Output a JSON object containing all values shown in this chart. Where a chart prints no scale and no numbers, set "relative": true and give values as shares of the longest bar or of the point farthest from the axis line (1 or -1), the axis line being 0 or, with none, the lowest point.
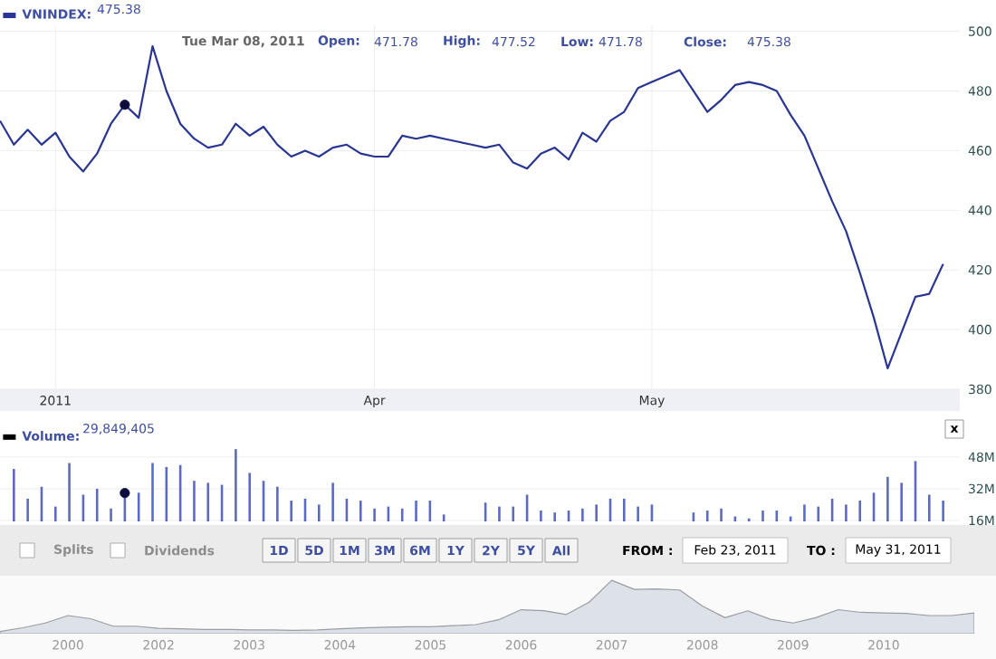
{
  "chart_data": [
    {
      "type": "line",
      "categories": [
        null,
        null,
        null,
        null,
        "2011",
        null,
        null,
        null,
        null,
        null,
        null,
        null,
        null,
        null,
        null,
        null,
        null,
        null,
        null,
        null,
        null,
        null,
        null,
        null,
        null,
        null,
        null,
        "Apr",
        null,
        null,
        null,
        null,
        null,
        null,
        null,
        null,
        null,
        null,
        null,
        null,
        null,
        null,
        null,
        null,
        null,
        null,
        null,
        "May",
        null,
        null,
        null,
        null,
        null,
        null,
        null,
        null,
        null,
        null,
        null,
        null,
        null,
        null,
        null,
        null,
        null,
        null,
        null,
        null,
        null
      ],
      "series": [
        {
          "name": "VNINDEX:",
          "color": "#283593",
          "values": [
            470,
            462,
            467,
            462,
            466,
            458,
            453,
            459,
            469,
            475.38,
            471,
            495,
            480,
            469,
            464,
            461,
            462,
            469,
            465,
            468,
            462,
            458,
            460,
            458,
            461,
            462,
            459,
            458,
            458,
            465,
            464,
            465,
            464,
            463,
            462,
            461,
            462,
            456,
            454,
            459,
            461,
            457,
            466,
            463,
            470,
            473,
            481,
            483,
            485,
            487,
            480,
            473,
            477,
            482,
            483,
            482,
            480,
            472,
            465,
            454,
            443,
            433,
            419,
            404,
            387,
            399,
            411,
            412,
            422
          ]
        },
        {
          "type": "scatter",
          "color": "#0d0d3d",
          "values": [
            null,
            null,
            null,
            null,
            null,
            null,
            null,
            null,
            null,
            475.38,
            null,
            null,
            null,
            null,
            null,
            null,
            null,
            null,
            null,
            null,
            null,
            null,
            null,
            null,
            null,
            null,
            null,
            null,
            null,
            null,
            null,
            null,
            null,
            null,
            null,
            null,
            null,
            null,
            null,
            null,
            null,
            null,
            null,
            null,
            null,
            null,
            null,
            null,
            null,
            null,
            null,
            null,
            null,
            null,
            null,
            null,
            null,
            null,
            null,
            null,
            null,
            null,
            null,
            null,
            null,
            null,
            null,
            null,
            null
          ]
        }
      ],
      "ylim": [
        380,
        502
      ],
      "yticks": [
        380,
        400,
        420,
        440,
        460,
        480,
        500
      ],
      "grid": true,
      "legend": "top left",
      "annotations": [
        "475.38",
        "Tue Mar 08, 2011",
        "Open:",
        "471.78",
        "High:",
        "477.52",
        "Low:",
        "471.78",
        "Close:",
        "475.38"
      ]
    },
    {
      "type": "bar",
      "categories": [
        null,
        null,
        null,
        null,
        null,
        null,
        null,
        null,
        null,
        null,
        null,
        null,
        null,
        null,
        null,
        null,
        null,
        null,
        null,
        null,
        null,
        null,
        null,
        null,
        null,
        null,
        null,
        null,
        null,
        null,
        null,
        null,
        null,
        null,
        null,
        null,
        null,
        null,
        null,
        null,
        null,
        null,
        null,
        null,
        null,
        null,
        null,
        null,
        null,
        null,
        null,
        null,
        null,
        null,
        null,
        null,
        null,
        null,
        null,
        null,
        null,
        null,
        null,
        null,
        null,
        null,
        null,
        null,
        null
      ],
      "series": [
        {
          "name": "Volume:",
          "color": "#5c6bc0",
          "values": [
            null,
            42,
            27,
            33,
            23,
            45,
            29,
            32,
            22,
            29.849405,
            30,
            45,
            43,
            44,
            36,
            35,
            34,
            52,
            40,
            36,
            33,
            26,
            27,
            24,
            35,
            27,
            26,
            22,
            23,
            22,
            26,
            26,
            19,
            null,
            null,
            25,
            23,
            23,
            29,
            21,
            20,
            21,
            22,
            24,
            27,
            27,
            23,
            24,
            null,
            null,
            20,
            21,
            22,
            18,
            17,
            21,
            21,
            18,
            24,
            23,
            27,
            24,
            26,
            30,
            38,
            35,
            46,
            29,
            26
          ]
        },
        {
          "type": "scatter",
          "color": "#0d0d3d",
          "values": [
            null,
            null,
            null,
            null,
            null,
            null,
            null,
            null,
            null,
            29.849405,
            null,
            null,
            null,
            null,
            null,
            null,
            null,
            null,
            null,
            null,
            null,
            null,
            null,
            null,
            null,
            null,
            null,
            null,
            null,
            null,
            null,
            null,
            null,
            null,
            null,
            null,
            null,
            null,
            null,
            null,
            null,
            null,
            null,
            null,
            null,
            null,
            null,
            null,
            null,
            null,
            null,
            null,
            null,
            null,
            null,
            null,
            null,
            null,
            null,
            null,
            null,
            null,
            null,
            null,
            null,
            null,
            null,
            null,
            null
          ]
        }
      ],
      "ylim": [
        15.5,
        53
      ],
      "yticks": [
        {
          "value": 16,
          "label": "16M"
        },
        {
          "value": 32,
          "label": "32M"
        },
        {
          "value": 48,
          "label": "48M"
        }
      ],
      "tick_labels": "y",
      "grid": "y",
      "legend": "top left",
      "annotations": [
        "29,849,405"
      ]
    },
    {
      "type": "other",
      "annotations": [
        "Splits",
        "Dividends",
        "1D",
        "5D",
        "1M",
        "3M",
        "6M",
        "1Y",
        "2Y",
        "5Y",
        "All",
        "FROM :",
        "Feb 23, 2011",
        "TO :",
        "May 31, 2011",
        "x"
      ]
    },
    {
      "type": "area",
      "relative": true,
      "color": "#dde1e8",
      "categories": [
        null,
        null,
        null,
        "2000",
        null,
        null,
        null,
        "2002",
        null,
        null,
        null,
        "2003",
        null,
        null,
        null,
        "2004",
        null,
        null,
        null,
        "2005",
        null,
        null,
        null,
        "2006",
        null,
        null,
        null,
        "2007",
        null,
        null,
        null,
        "2008",
        null,
        null,
        null,
        "2009",
        null,
        null,
        null,
        "2010",
        null,
        null,
        null,
        null
      ],
      "values": [
        0.04,
        0.11,
        0.2,
        0.34,
        0.28,
        0.14,
        0.14,
        0.1,
        0.09,
        0.08,
        0.08,
        0.07,
        0.07,
        0.06,
        0.07,
        0.09,
        0.11,
        0.12,
        0.13,
        0.13,
        0.15,
        0.17,
        0.26,
        0.45,
        0.43,
        0.36,
        0.59,
        1.0,
        0.83,
        0.84,
        0.82,
        0.52,
        0.3,
        0.43,
        0.27,
        0.2,
        0.3,
        0.45,
        0.4,
        0.39,
        0.38,
        0.34,
        0.34,
        0.39
      ],
      "tick_labels": "x"
    }
  ]
}
